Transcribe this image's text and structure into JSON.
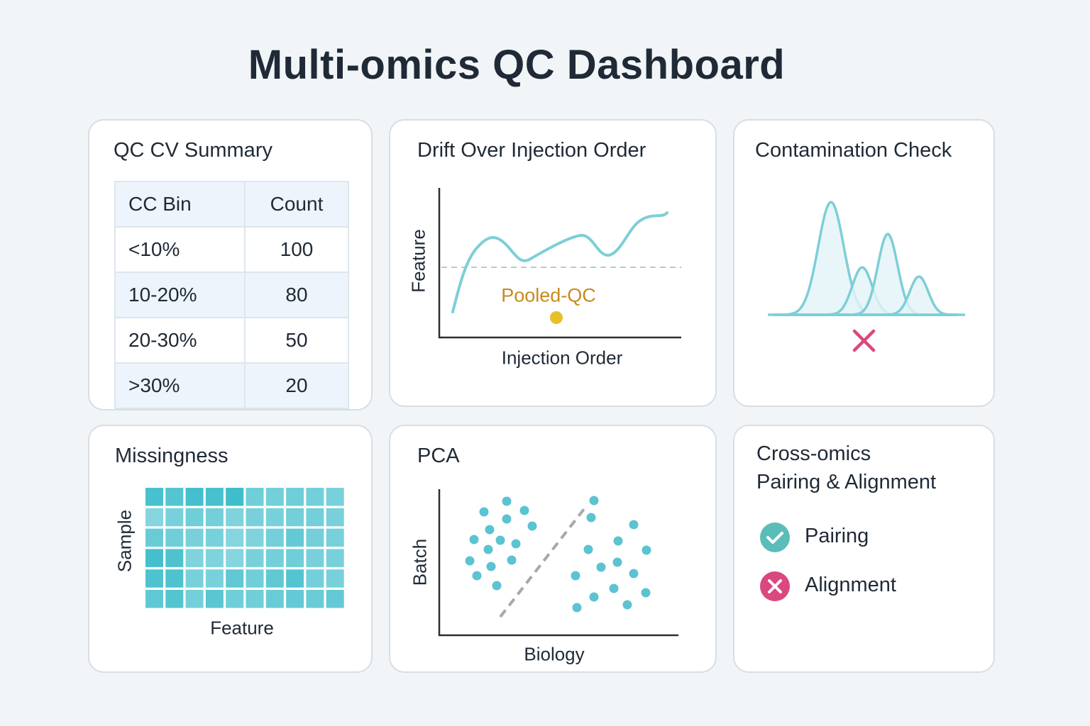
{
  "title": "Multi-omics QC Dashboard",
  "colors": {
    "accent": "#5fc4cf",
    "pass": "#5bbdb8",
    "fail": "#d9487e",
    "pooled_qc": "#c98a1e",
    "pooled_qc_dot": "#e8bf2a"
  },
  "cv_summary": {
    "title": "QC CV Summary",
    "headers": [
      "CC Bin",
      "Count"
    ],
    "rows": [
      {
        "bin": "<10%",
        "count": "100"
      },
      {
        "bin": "10-20%",
        "count": "80"
      },
      {
        "bin": "20-30%",
        "count": "50"
      },
      {
        "bin": ">30%",
        "count": "20"
      }
    ]
  },
  "drift": {
    "title": "Drift Over Injection Order",
    "ylabel": "Feature",
    "xlabel": "Injection Order",
    "annotation": "Pooled-QC"
  },
  "contamination": {
    "title": "Contamination Check",
    "status_icon": "x-icon"
  },
  "missingness": {
    "title": "Missingness",
    "ylabel": "Sample",
    "xlabel": "Feature"
  },
  "pca": {
    "title": "PCA",
    "ylabel": "Batch",
    "xlabel": "Biology"
  },
  "cross_omics": {
    "title_line1": "Cross-omics",
    "title_line2": "Pairing & Alignment",
    "checks": [
      {
        "label": "Pairing",
        "status": "pass",
        "icon": "check-icon"
      },
      {
        "label": "Alignment",
        "status": "fail",
        "icon": "x-icon"
      }
    ]
  }
}
